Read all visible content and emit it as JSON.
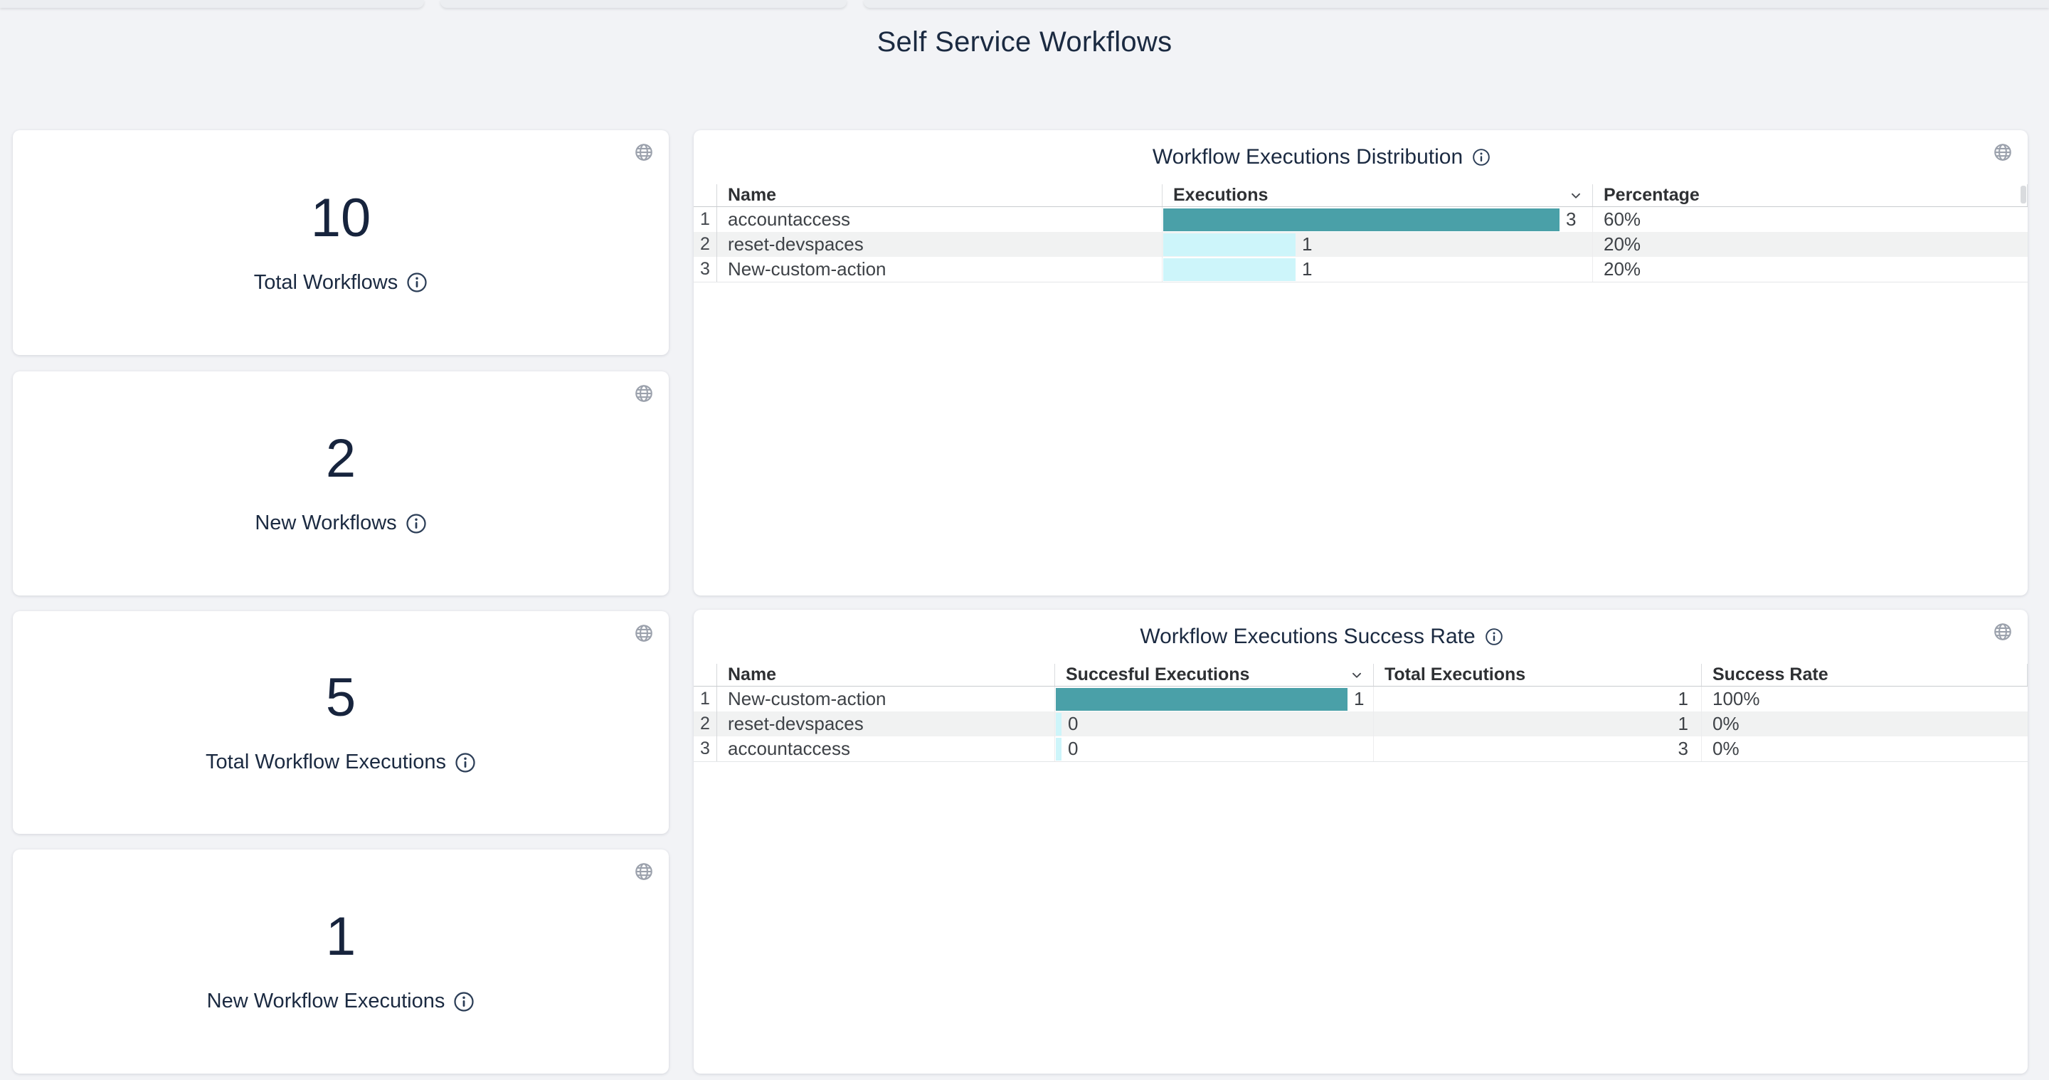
{
  "page": {
    "title": "Self Service Workflows"
  },
  "colors": {
    "bar_teal": "#4AA0A8",
    "bar_cyan": "#CDF5FA",
    "row_stripe": "#F1F2F2",
    "text_navy": "#1B2A41",
    "icon_gray": "#9BA1AC"
  },
  "stat_cards": [
    {
      "id": "total-workflows",
      "value": "10",
      "label": "Total Workflows"
    },
    {
      "id": "new-workflows",
      "value": "2",
      "label": "New Workflows"
    },
    {
      "id": "total-workflow-executions",
      "value": "5",
      "label": "Total Workflow Executions"
    },
    {
      "id": "new-workflow-executions",
      "value": "1",
      "label": "New Workflow Executions"
    }
  ],
  "distribution_table": {
    "title": "Workflow Executions Distribution",
    "columns": {
      "name": "Name",
      "executions": "Executions",
      "percentage": "Percentage"
    },
    "sorted_by": "Executions",
    "rows": [
      {
        "num": "1",
        "name": "accountaccess",
        "executions": 3,
        "percentage": "60%"
      },
      {
        "num": "2",
        "name": "reset-devspaces",
        "executions": 1,
        "percentage": "20%"
      },
      {
        "num": "3",
        "name": "New-custom-action",
        "executions": 1,
        "percentage": "20%"
      }
    ]
  },
  "success_table": {
    "title": "Workflow Executions Success Rate",
    "columns": {
      "name": "Name",
      "successful": "Succesful Executions",
      "total": "Total Executions",
      "rate": "Success Rate"
    },
    "sorted_by": "Succesful Executions",
    "rows": [
      {
        "num": "1",
        "name": "New-custom-action",
        "successful": 1,
        "total": "1",
        "rate": "100%"
      },
      {
        "num": "2",
        "name": "reset-devspaces",
        "successful": 0,
        "total": "1",
        "rate": "0%"
      },
      {
        "num": "3",
        "name": "accountaccess",
        "successful": 0,
        "total": "3",
        "rate": "0%"
      }
    ]
  },
  "chart_data": [
    {
      "type": "bar",
      "orientation": "horizontal",
      "title": "Workflow Executions Distribution",
      "categories": [
        "accountaccess",
        "reset-devspaces",
        "New-custom-action"
      ],
      "values": [
        3,
        1,
        1
      ],
      "percentages": [
        "60%",
        "20%",
        "20%"
      ],
      "xlabel": "Executions",
      "ylabel": "Name",
      "xlim": [
        0,
        3
      ]
    },
    {
      "type": "bar",
      "orientation": "horizontal",
      "title": "Workflow Executions Success Rate",
      "categories": [
        "New-custom-action",
        "reset-devspaces",
        "accountaccess"
      ],
      "series": [
        {
          "name": "Succesful Executions",
          "values": [
            1,
            0,
            0
          ]
        },
        {
          "name": "Total Executions",
          "values": [
            1,
            1,
            3
          ]
        }
      ],
      "success_rates": [
        "100%",
        "0%",
        "0%"
      ],
      "xlim": [
        0,
        1
      ]
    }
  ]
}
